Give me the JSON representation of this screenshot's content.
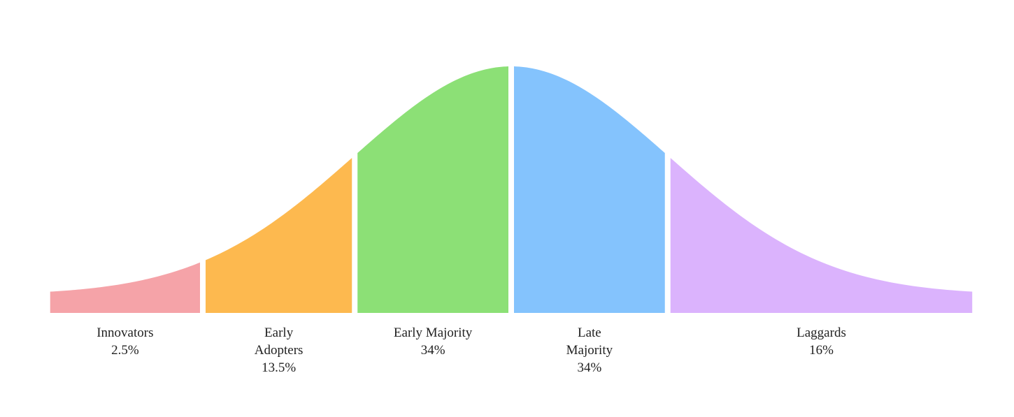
{
  "chart_data": {
    "type": "bell-segments",
    "categories": [
      "Innovators",
      "Early Adopters",
      "Early Majority",
      "Late Majority",
      "Laggards"
    ],
    "values": [
      2.5,
      13.5,
      34,
      34,
      16
    ],
    "value_labels": [
      "2.5%",
      "13.5%",
      "34%",
      "34%",
      "16%"
    ],
    "colors": [
      "#f5a3a8",
      "#fdb94f",
      "#8ce076",
      "#84c3fd",
      "#dbb3fd"
    ]
  }
}
